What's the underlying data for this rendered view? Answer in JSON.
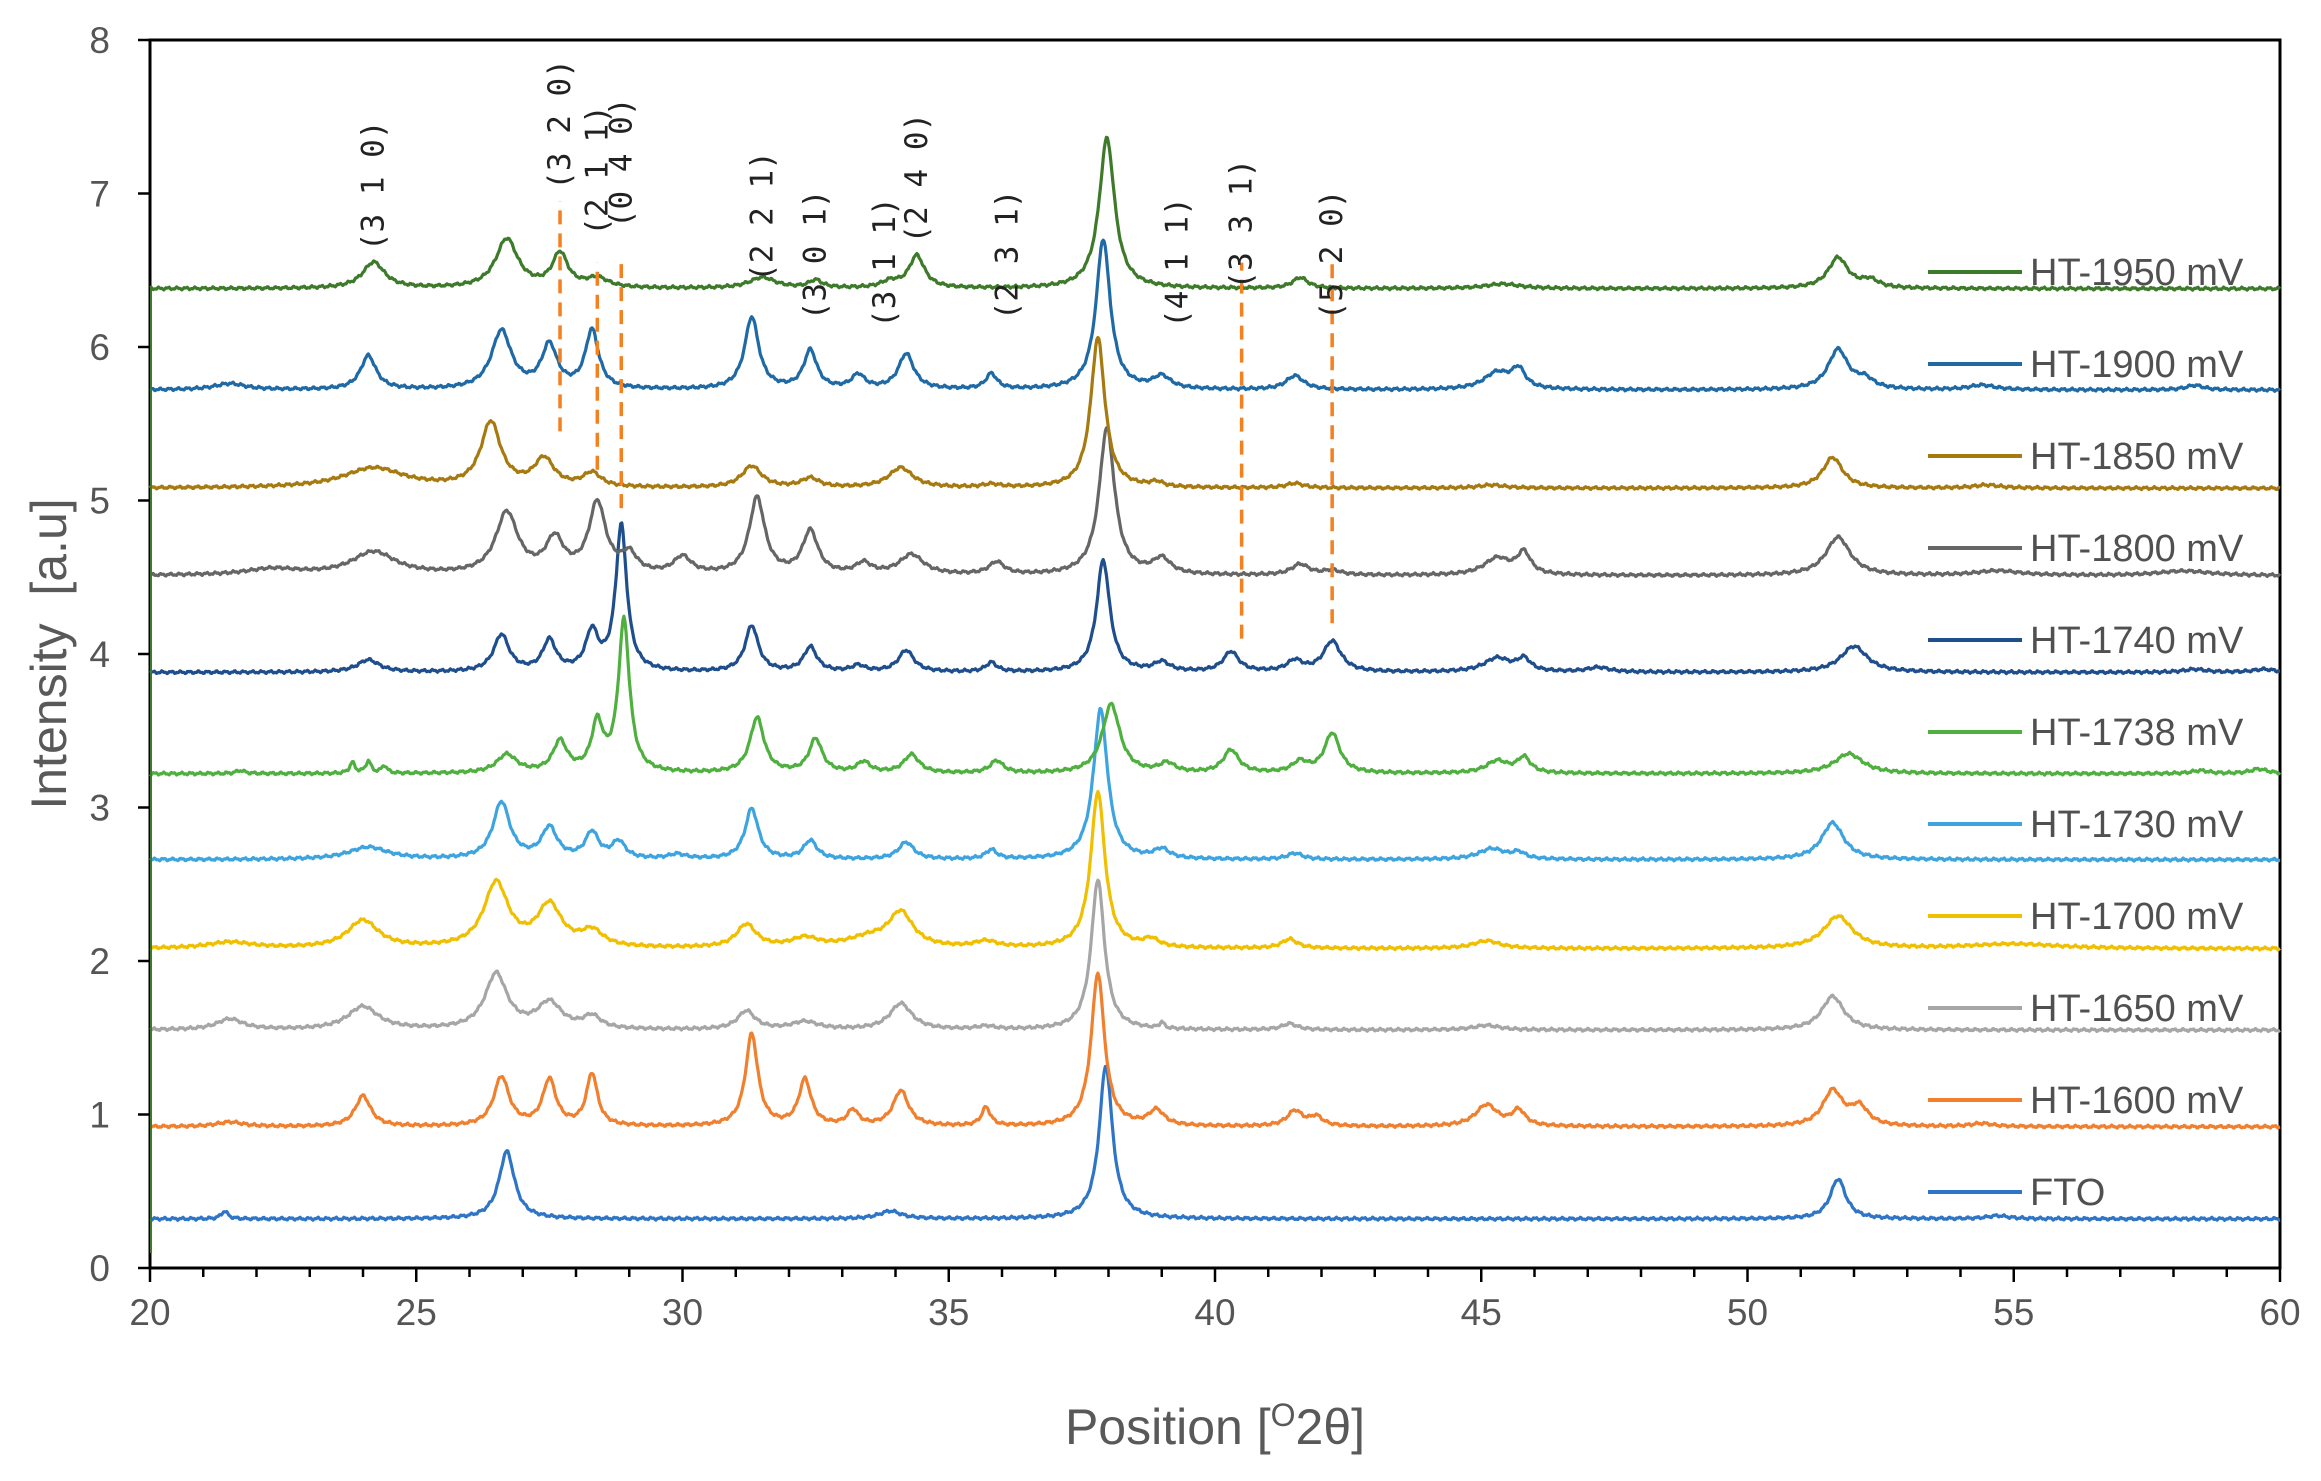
{
  "chart_data": {
    "type": "line",
    "title": "",
    "xlabel": "Position [",
    "xlabel_sup": "O",
    "xlabel_tail": "2θ]",
    "ylabel": "Intensity  [a.u]",
    "xlim": [
      20,
      60
    ],
    "ylim": [
      0,
      8
    ],
    "xticks": [
      "20",
      "25",
      "30",
      "35",
      "40",
      "45",
      "50",
      "55",
      "60"
    ],
    "yticks": [
      "0",
      "1",
      "2",
      "3",
      "4",
      "5",
      "6",
      "7",
      "8"
    ],
    "legend_position": "right",
    "series": [
      {
        "name": "HT-1950 mV",
        "color": "#3d7a2a",
        "baseline": 6.38,
        "peaks": [
          [
            24.2,
            0.17,
            0.5
          ],
          [
            26.7,
            0.32,
            0.5
          ],
          [
            27.7,
            0.22,
            0.35
          ],
          [
            28.4,
            0.06,
            0.5
          ],
          [
            31.5,
            0.07,
            0.6
          ],
          [
            32.5,
            0.05,
            0.3
          ],
          [
            33.9,
            0.04,
            0.4
          ],
          [
            34.4,
            0.21,
            0.35
          ],
          [
            37.97,
            0.98,
            0.35
          ],
          [
            41.6,
            0.07,
            0.35
          ],
          [
            45.4,
            0.03,
            0.8
          ],
          [
            51.7,
            0.2,
            0.45
          ],
          [
            52.3,
            0.05,
            0.4
          ]
        ]
      },
      {
        "name": "HT-1900 mV",
        "color": "#1f6aa5",
        "baseline": 5.72,
        "peaks": [
          [
            21.5,
            0.04,
            0.7
          ],
          [
            24.1,
            0.22,
            0.35
          ],
          [
            26.6,
            0.38,
            0.45
          ],
          [
            27.5,
            0.28,
            0.35
          ],
          [
            28.3,
            0.38,
            0.3
          ],
          [
            31.3,
            0.47,
            0.32
          ],
          [
            32.4,
            0.25,
            0.3
          ],
          [
            33.3,
            0.09,
            0.3
          ],
          [
            34.2,
            0.23,
            0.35
          ],
          [
            35.8,
            0.1,
            0.25
          ],
          [
            37.9,
            0.98,
            0.32
          ],
          [
            39.0,
            0.08,
            0.4
          ],
          [
            41.5,
            0.09,
            0.4
          ],
          [
            45.3,
            0.11,
            0.6
          ],
          [
            45.7,
            0.12,
            0.3
          ],
          [
            51.7,
            0.26,
            0.45
          ],
          [
            52.2,
            0.06,
            0.4
          ],
          [
            54.4,
            0.03,
            0.6
          ],
          [
            58.4,
            0.03,
            0.4
          ]
        ]
      },
      {
        "name": "HT-1850 mV",
        "color": "#a67a10",
        "baseline": 5.08,
        "peaks": [
          [
            24.2,
            0.13,
            1.4
          ],
          [
            26.4,
            0.42,
            0.45
          ],
          [
            27.4,
            0.18,
            0.45
          ],
          [
            28.3,
            0.09,
            0.4
          ],
          [
            31.3,
            0.14,
            0.45
          ],
          [
            32.4,
            0.06,
            0.4
          ],
          [
            34.1,
            0.13,
            0.55
          ],
          [
            35.8,
            0.02,
            0.4
          ],
          [
            37.8,
            0.98,
            0.32
          ],
          [
            38.9,
            0.03,
            0.3
          ],
          [
            41.5,
            0.03,
            0.4
          ],
          [
            45.2,
            0.02,
            0.6
          ],
          [
            51.6,
            0.2,
            0.45
          ],
          [
            54.5,
            0.02,
            0.6
          ]
        ]
      },
      {
        "name": "HT-1800 mV",
        "color": "#666666",
        "baseline": 4.51,
        "peaks": [
          [
            22.3,
            0.04,
            1.2
          ],
          [
            24.2,
            0.15,
            1.0
          ],
          [
            26.7,
            0.4,
            0.5
          ],
          [
            27.6,
            0.22,
            0.4
          ],
          [
            28.4,
            0.46,
            0.38
          ],
          [
            29.0,
            0.12,
            0.35
          ],
          [
            30.0,
            0.11,
            0.4
          ],
          [
            31.4,
            0.5,
            0.35
          ],
          [
            32.4,
            0.28,
            0.35
          ],
          [
            33.4,
            0.07,
            0.35
          ],
          [
            34.3,
            0.13,
            0.55
          ],
          [
            35.9,
            0.08,
            0.35
          ],
          [
            37.97,
            0.96,
            0.35
          ],
          [
            39.0,
            0.1,
            0.4
          ],
          [
            41.6,
            0.07,
            0.4
          ],
          [
            42.2,
            0.03,
            0.4
          ],
          [
            45.3,
            0.11,
            0.6
          ],
          [
            45.8,
            0.14,
            0.3
          ],
          [
            51.7,
            0.25,
            0.55
          ],
          [
            54.7,
            0.03,
            1.0
          ],
          [
            58.2,
            0.03,
            1.2
          ]
        ]
      },
      {
        "name": "HT-1740 mV",
        "color": "#1f4e8c",
        "baseline": 3.88,
        "peaks": [
          [
            24.1,
            0.08,
            0.5
          ],
          [
            26.6,
            0.24,
            0.35
          ],
          [
            27.5,
            0.2,
            0.3
          ],
          [
            28.3,
            0.25,
            0.28
          ],
          [
            28.85,
            0.95,
            0.25
          ],
          [
            31.3,
            0.3,
            0.3
          ],
          [
            32.4,
            0.16,
            0.3
          ],
          [
            33.3,
            0.04,
            0.3
          ],
          [
            34.2,
            0.14,
            0.35
          ],
          [
            35.8,
            0.06,
            0.25
          ],
          [
            37.9,
            0.73,
            0.3
          ],
          [
            39.0,
            0.06,
            0.35
          ],
          [
            40.3,
            0.13,
            0.35
          ],
          [
            41.5,
            0.07,
            0.35
          ],
          [
            42.2,
            0.2,
            0.4
          ],
          [
            45.3,
            0.09,
            0.6
          ],
          [
            45.8,
            0.08,
            0.3
          ],
          [
            47.2,
            0.03,
            0.5
          ],
          [
            52.0,
            0.17,
            0.6
          ],
          [
            58.4,
            0.02,
            0.5
          ],
          [
            59.7,
            0.02,
            0.5
          ]
        ]
      },
      {
        "name": "HT-1738 mV",
        "color": "#4fb040",
        "baseline": 3.22,
        "peaks": [
          [
            21.7,
            0.02,
            0.2
          ],
          [
            23.8,
            0.07,
            0.12
          ],
          [
            24.1,
            0.08,
            0.12
          ],
          [
            24.4,
            0.05,
            0.12
          ],
          [
            26.7,
            0.12,
            0.45
          ],
          [
            27.7,
            0.2,
            0.32
          ],
          [
            28.4,
            0.31,
            0.26
          ],
          [
            28.9,
            0.99,
            0.25
          ],
          [
            31.4,
            0.36,
            0.32
          ],
          [
            32.5,
            0.22,
            0.3
          ],
          [
            33.4,
            0.07,
            0.3
          ],
          [
            34.3,
            0.12,
            0.35
          ],
          [
            35.9,
            0.08,
            0.3
          ],
          [
            38.05,
            0.45,
            0.4
          ],
          [
            39.1,
            0.06,
            0.35
          ],
          [
            40.3,
            0.15,
            0.35
          ],
          [
            41.6,
            0.07,
            0.35
          ],
          [
            42.2,
            0.26,
            0.35
          ],
          [
            45.3,
            0.08,
            0.5
          ],
          [
            45.8,
            0.1,
            0.3
          ],
          [
            51.9,
            0.13,
            0.65
          ],
          [
            58.5,
            0.02,
            0.4
          ],
          [
            59.6,
            0.03,
            0.4
          ]
        ]
      },
      {
        "name": "HT-1730 mV",
        "color": "#3ea4e0",
        "baseline": 2.66,
        "peaks": [
          [
            24.1,
            0.08,
            0.9
          ],
          [
            26.6,
            0.37,
            0.38
          ],
          [
            27.5,
            0.2,
            0.35
          ],
          [
            28.3,
            0.17,
            0.3
          ],
          [
            28.8,
            0.11,
            0.3
          ],
          [
            29.9,
            0.03,
            0.4
          ],
          [
            31.3,
            0.33,
            0.3
          ],
          [
            32.4,
            0.12,
            0.3
          ],
          [
            34.2,
            0.11,
            0.35
          ],
          [
            35.8,
            0.06,
            0.25
          ],
          [
            37.85,
            0.98,
            0.32
          ],
          [
            39.0,
            0.06,
            0.35
          ],
          [
            41.5,
            0.04,
            0.35
          ],
          [
            45.2,
            0.07,
            0.6
          ],
          [
            45.7,
            0.04,
            0.3
          ],
          [
            51.6,
            0.24,
            0.5
          ]
        ]
      },
      {
        "name": "HT-1700 mV",
        "color": "#f0bf00",
        "baseline": 2.08,
        "peaks": [
          [
            21.5,
            0.04,
            1.0
          ],
          [
            24.0,
            0.18,
            0.7
          ],
          [
            26.5,
            0.42,
            0.55
          ],
          [
            27.5,
            0.27,
            0.55
          ],
          [
            28.3,
            0.1,
            0.5
          ],
          [
            31.2,
            0.15,
            0.45
          ],
          [
            32.3,
            0.06,
            0.6
          ],
          [
            33.5,
            0.06,
            1.0
          ],
          [
            34.1,
            0.22,
            0.55
          ],
          [
            35.7,
            0.04,
            0.5
          ],
          [
            37.8,
            1.02,
            0.32
          ],
          [
            38.8,
            0.05,
            0.35
          ],
          [
            41.4,
            0.06,
            0.35
          ],
          [
            45.1,
            0.05,
            0.6
          ],
          [
            51.7,
            0.21,
            0.65
          ],
          [
            55.0,
            0.03,
            2.0
          ]
        ]
      },
      {
        "name": "HT-1650 mV",
        "color": "#a6a6a6",
        "baseline": 1.55,
        "peaks": [
          [
            21.5,
            0.07,
            0.6
          ],
          [
            24.0,
            0.15,
            0.7
          ],
          [
            26.5,
            0.36,
            0.5
          ],
          [
            27.5,
            0.17,
            0.55
          ],
          [
            28.3,
            0.08,
            0.4
          ],
          [
            31.2,
            0.12,
            0.4
          ],
          [
            32.3,
            0.05,
            0.6
          ],
          [
            34.1,
            0.17,
            0.5
          ],
          [
            35.7,
            0.02,
            0.4
          ],
          [
            37.8,
            0.98,
            0.3
          ],
          [
            39.0,
            0.04,
            0.1
          ],
          [
            41.4,
            0.04,
            0.35
          ],
          [
            45.1,
            0.03,
            0.6
          ],
          [
            51.6,
            0.22,
            0.5
          ]
        ]
      },
      {
        "name": "HT-1600 mV",
        "color": "#f07f2e",
        "baseline": 0.92,
        "peaks": [
          [
            21.5,
            0.03,
            0.6
          ],
          [
            24.0,
            0.2,
            0.35
          ],
          [
            26.6,
            0.32,
            0.35
          ],
          [
            27.5,
            0.3,
            0.3
          ],
          [
            28.3,
            0.34,
            0.25
          ],
          [
            31.3,
            0.6,
            0.28
          ],
          [
            32.3,
            0.3,
            0.28
          ],
          [
            33.2,
            0.1,
            0.25
          ],
          [
            34.1,
            0.23,
            0.35
          ],
          [
            35.7,
            0.12,
            0.2
          ],
          [
            37.8,
            1.0,
            0.3
          ],
          [
            38.9,
            0.1,
            0.35
          ],
          [
            41.5,
            0.1,
            0.35
          ],
          [
            41.9,
            0.06,
            0.3
          ],
          [
            45.1,
            0.14,
            0.5
          ],
          [
            45.7,
            0.1,
            0.3
          ],
          [
            51.6,
            0.23,
            0.45
          ],
          [
            52.1,
            0.12,
            0.4
          ],
          [
            54.4,
            0.02,
            0.5
          ]
        ]
      },
      {
        "name": "FTO",
        "color": "#2e75c8",
        "baseline": 0.32,
        "peaks": [
          [
            21.4,
            0.05,
            0.15
          ],
          [
            26.7,
            0.44,
            0.35
          ],
          [
            33.9,
            0.05,
            0.5
          ],
          [
            37.95,
            1.0,
            0.3
          ],
          [
            51.7,
            0.26,
            0.35
          ],
          [
            54.7,
            0.02,
            0.5
          ]
        ]
      }
    ],
    "annotations": [
      {
        "label": "(3 1 0)",
        "x": 24.2,
        "y": 7.05,
        "dashed_line": false
      },
      {
        "label": "(3 2 0)",
        "x": 27.7,
        "y": 7.45,
        "dashed_line": true,
        "line_from": 5.45,
        "line_to": 6.95
      },
      {
        "label": "(2 1 1)",
        "x": 28.4,
        "y": 7.15,
        "dashed_line": true,
        "line_from": 5.2,
        "line_to": 6.55
      },
      {
        "label": "(0 4 0)",
        "x": 28.85,
        "y": 7.2,
        "dashed_line": true,
        "line_from": 4.95,
        "line_to": 6.55
      },
      {
        "label": "(2 2 1)",
        "x": 31.5,
        "y": 6.85,
        "dashed_line": false
      },
      {
        "label": "(3 0 1)",
        "x": 32.5,
        "y": 6.6,
        "dashed_line": false
      },
      {
        "label": "(3 1 1)",
        "x": 33.8,
        "y": 6.55,
        "dashed_line": false
      },
      {
        "label": "(2 4 0)",
        "x": 34.4,
        "y": 7.1,
        "dashed_line": false
      },
      {
        "label": "(2 3 1)",
        "x": 36.1,
        "y": 6.6,
        "dashed_line": false
      },
      {
        "label": "(4 1 1)",
        "x": 39.3,
        "y": 6.55,
        "dashed_line": false
      },
      {
        "label": "(3 3 1)",
        "x": 40.5,
        "y": 6.8,
        "dashed_line": true,
        "line_from": 4.1,
        "line_to": 6.55
      },
      {
        "label": "(5 2 0)",
        "x": 42.2,
        "y": 6.6,
        "dashed_line": true,
        "line_from": 4.2,
        "line_to": 6.55
      }
    ],
    "annotation_line_color": "#f4801f"
  }
}
